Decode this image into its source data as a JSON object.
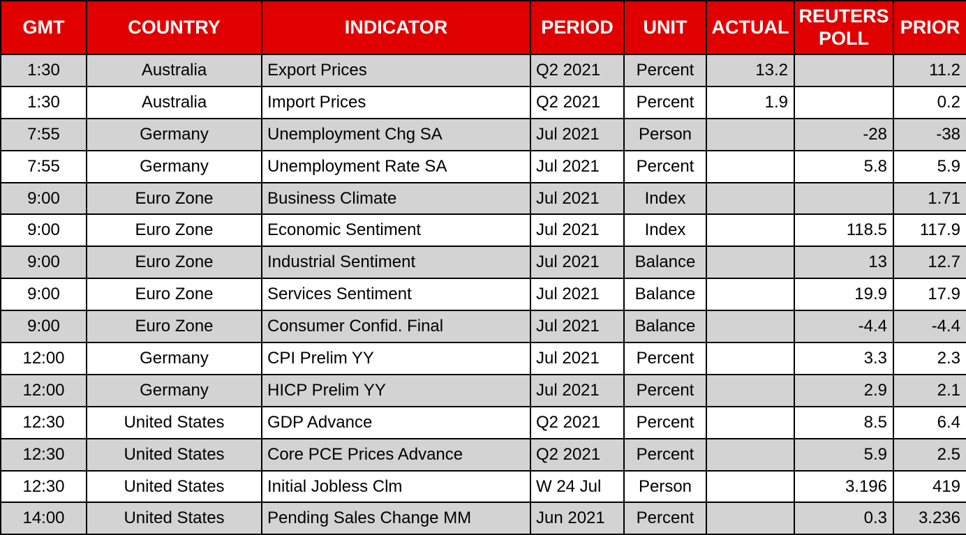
{
  "colors": {
    "header_bg": "#e00000",
    "header_text": "#ffffff",
    "stripe_bg": "#d3d3d3",
    "row_bg": "#ffffff",
    "border": "#000000",
    "text": "#000000"
  },
  "chart_data": {
    "type": "table",
    "columns": [
      "GMT",
      "COUNTRY",
      "INDICATOR",
      "PERIOD",
      "UNIT",
      "ACTUAL",
      "REUTERS POLL",
      "PRIOR"
    ],
    "rows": [
      [
        "1:30",
        "Australia",
        "Export Prices",
        "Q2 2021",
        "Percent",
        "13.2",
        "",
        "11.2"
      ],
      [
        "1:30",
        "Australia",
        "Import Prices",
        "Q2 2021",
        "Percent",
        "1.9",
        "",
        "0.2"
      ],
      [
        "7:55",
        "Germany",
        "Unemployment Chg SA",
        "Jul 2021",
        "Person",
        "",
        "-28",
        "-38"
      ],
      [
        "7:55",
        "Germany",
        "Unemployment Rate SA",
        "Jul 2021",
        "Percent",
        "",
        "5.8",
        "5.9"
      ],
      [
        "9:00",
        "Euro Zone",
        "Business Climate",
        "Jul 2021",
        "Index",
        "",
        "",
        "1.71"
      ],
      [
        "9:00",
        "Euro Zone",
        "Economic Sentiment",
        "Jul 2021",
        "Index",
        "",
        "118.5",
        "117.9"
      ],
      [
        "9:00",
        "Euro Zone",
        "Industrial Sentiment",
        "Jul 2021",
        "Balance",
        "",
        "13",
        "12.7"
      ],
      [
        "9:00",
        "Euro Zone",
        "Services Sentiment",
        "Jul 2021",
        "Balance",
        "",
        "19.9",
        "17.9"
      ],
      [
        "9:00",
        "Euro Zone",
        "Consumer Confid. Final",
        "Jul 2021",
        "Balance",
        "",
        "-4.4",
        "-4.4"
      ],
      [
        "12:00",
        "Germany",
        "CPI Prelim YY",
        "Jul 2021",
        "Percent",
        "",
        "3.3",
        "2.3"
      ],
      [
        "12:00",
        "Germany",
        "HICP Prelim YY",
        "Jul 2021",
        "Percent",
        "",
        "2.9",
        "2.1"
      ],
      [
        "12:30",
        "United States",
        "GDP Advance",
        "Q2 2021",
        "Percent",
        "",
        "8.5",
        "6.4"
      ],
      [
        "12:30",
        "United States",
        "Core PCE Prices Advance",
        "Q2 2021",
        "Percent",
        "",
        "5.9",
        "2.5"
      ],
      [
        "12:30",
        "United States",
        "Initial Jobless Clm",
        "W 24 Jul",
        "Person",
        "",
        "3.196",
        "419"
      ],
      [
        "14:00",
        "United States",
        "Pending Sales Change MM",
        "Jun 2021",
        "Percent",
        "",
        "0.3",
        "3.236"
      ]
    ]
  }
}
